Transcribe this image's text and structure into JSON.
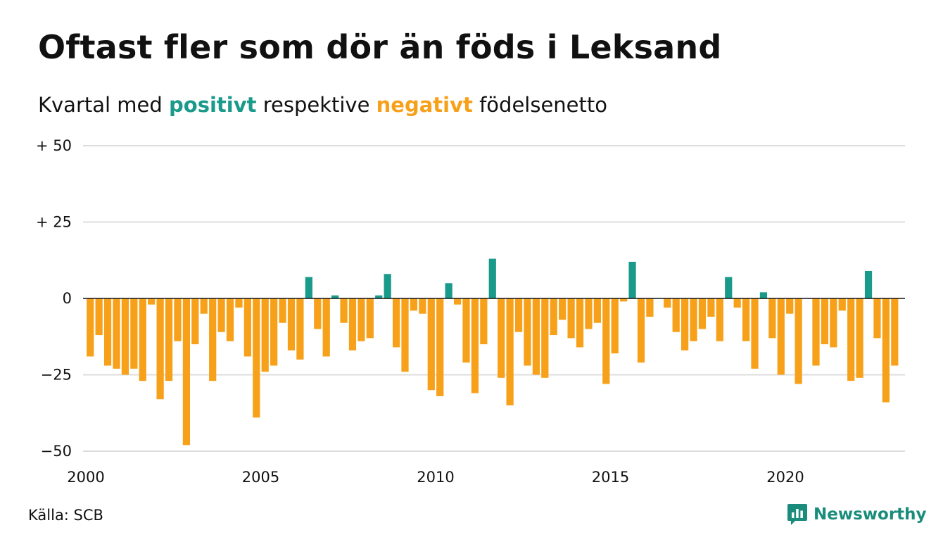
{
  "header": {
    "title": "Oftast fler som dör än föds i Leksand",
    "subtitle_start": "Kvartal med ",
    "subtitle_positive": "positivt",
    "subtitle_middle": " respektive ",
    "subtitle_negative": "negativt",
    "subtitle_end": " födelsenetto"
  },
  "footer": {
    "source": "Källa: SCB",
    "brand": "Newsworthy",
    "brand_icon": "bar-chart-speech-bubble-icon"
  },
  "colors": {
    "positive": "#1a9a8a",
    "negative": "#f7a11a",
    "grid": "#dddddd",
    "zero_line": "#111111",
    "brand": "#1a8c7c"
  },
  "chart_data": {
    "type": "bar",
    "frequency": "quarterly",
    "start_year": 2000,
    "start_quarter": 1,
    "ylim": [
      -50,
      50
    ],
    "y_ticks": [
      50,
      25,
      0,
      -25,
      -50
    ],
    "y_tick_labels": [
      "+ 50",
      "+ 25",
      "0",
      "−25",
      "−50"
    ],
    "x_ticks": [
      2000,
      2005,
      2010,
      2015,
      2020
    ],
    "x_tick_labels": [
      "2000",
      "2005",
      "2010",
      "2015",
      "2020"
    ],
    "grid": true,
    "values": [
      -19,
      -12,
      -22,
      -23,
      -25,
      -23,
      -27,
      -2,
      -33,
      -27,
      -14,
      -48,
      -15,
      -5,
      -27,
      -11,
      -14,
      -3,
      -19,
      -39,
      -24,
      -22,
      -8,
      -17,
      -20,
      7,
      -10,
      -19,
      1,
      -8,
      -17,
      -14,
      -13,
      1,
      8,
      -16,
      -24,
      -4,
      -5,
      -30,
      -32,
      5,
      -2,
      -21,
      -31,
      -15,
      13,
      -26,
      -35,
      -11,
      -22,
      -25,
      -26,
      -12,
      -7,
      -13,
      -16,
      -10,
      -8,
      -28,
      -18,
      -1,
      12,
      -21,
      -6,
      0,
      -3,
      -11,
      -17,
      -14,
      -10,
      -6,
      -14,
      7,
      -3,
      -14,
      -23,
      2,
      -13,
      -25,
      -5,
      -28,
      0,
      -22,
      -15,
      -16,
      -4,
      -27,
      -26,
      9,
      -13,
      -34,
      -22
    ]
  }
}
